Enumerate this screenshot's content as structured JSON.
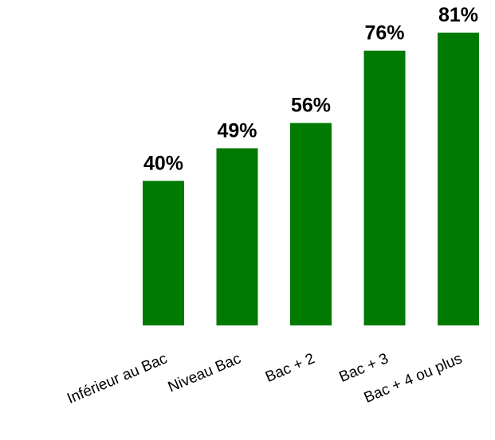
{
  "chart_data": {
    "type": "bar",
    "categories": [
      "Inférieur au Bac",
      "Niveau Bac",
      "Bac + 2",
      "Bac + 3",
      "Bac + 4 ou plus"
    ],
    "values": [
      40,
      49,
      56,
      76,
      81
    ],
    "value_labels": [
      "40%",
      "49%",
      "56%",
      "76%",
      "81%"
    ],
    "unit": "%",
    "ylim": [
      0,
      81
    ],
    "bar_color": "#007a00",
    "grid": false,
    "legend": "none",
    "title": "",
    "xlabel": "",
    "ylabel": ""
  }
}
